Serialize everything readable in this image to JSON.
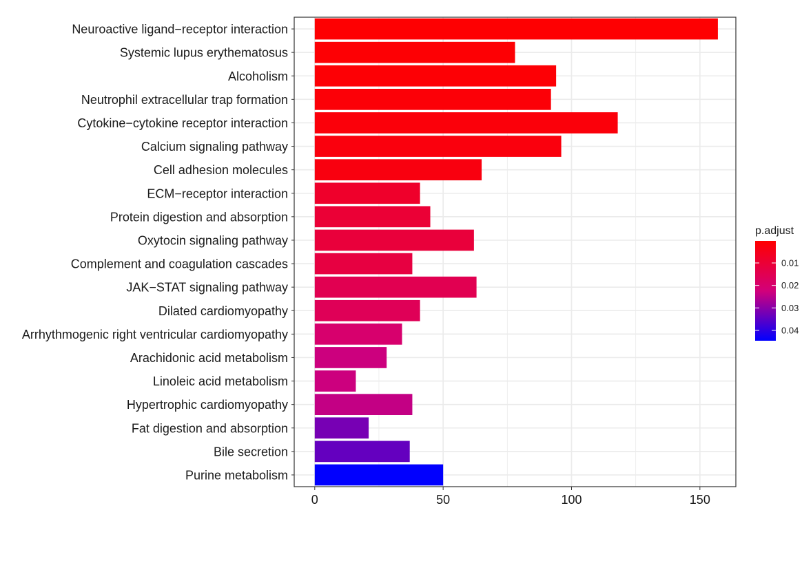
{
  "chart_data": {
    "type": "bar",
    "orientation": "horizontal",
    "categories": [
      "Neuroactive ligand−receptor interaction",
      "Systemic lupus erythematosus",
      "Alcoholism",
      "Neutrophil extracellular trap formation",
      "Cytokine−cytokine receptor interaction",
      "Calcium signaling pathway",
      "Cell adhesion molecules",
      "ECM−receptor interaction",
      "Protein digestion and absorption",
      "Oxytocin signaling pathway",
      "Complement and coagulation cascades",
      "JAK−STAT signaling pathway",
      "Dilated cardiomyopathy",
      "Arrhythmogenic right ventricular cardiomyopathy",
      "Arachidonic acid metabolism",
      "Linoleic acid metabolism",
      "Hypertrophic cardiomyopathy",
      "Fat digestion and absorption",
      "Bile secretion",
      "Purine metabolism"
    ],
    "values": [
      157,
      78,
      94,
      92,
      118,
      96,
      65,
      41,
      45,
      62,
      38,
      63,
      41,
      34,
      28,
      16,
      38,
      21,
      37,
      50
    ],
    "color_values": [
      0.0005,
      0.001,
      0.0012,
      0.0015,
      0.002,
      0.0025,
      0.003,
      0.008,
      0.01,
      0.011,
      0.012,
      0.015,
      0.016,
      0.02,
      0.023,
      0.023,
      0.024,
      0.032,
      0.034,
      0.0445
    ],
    "x_ticks": [
      0,
      50,
      100,
      150
    ],
    "xlim": [
      -8,
      164
    ],
    "xlabel": "",
    "ylabel": "",
    "title": "",
    "grid": true,
    "legend": {
      "title": "p.adjust",
      "position": "right",
      "ticks": [
        0.01,
        0.02,
        0.03,
        0.04
      ],
      "tick_labels": [
        "0.01",
        "0.02",
        "0.03",
        "0.04"
      ],
      "range": [
        0.0002,
        0.0446
      ],
      "color_low": "#ff0000",
      "color_mid": "#d2007a",
      "color_high": "#0000ff"
    }
  }
}
